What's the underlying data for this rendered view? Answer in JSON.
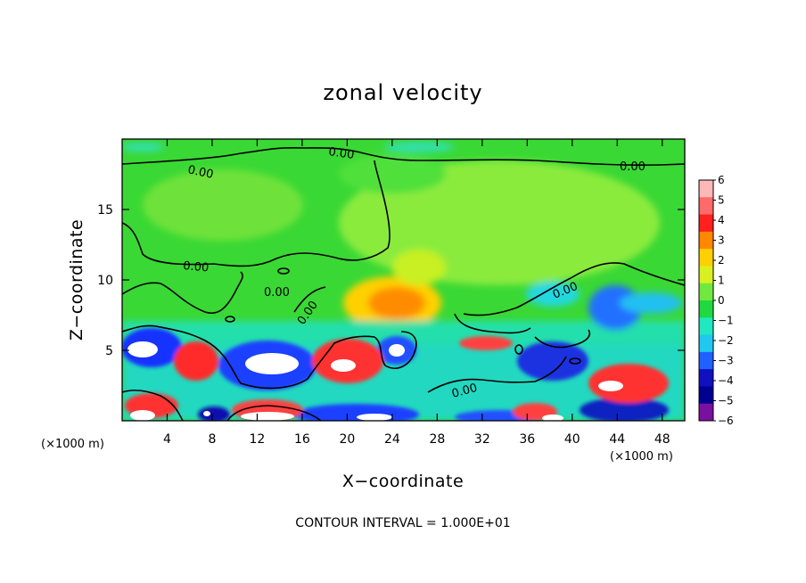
{
  "chart_data": {
    "type": "heatmap",
    "title": "zonal velocity",
    "xlabel": "X−coordinate",
    "ylabel": "Z−coordinate",
    "x_unit_left": "(×1000 m)",
    "x_unit_right": "(×1000 m)",
    "xlim": [
      0,
      50
    ],
    "ylim": [
      0,
      20
    ],
    "x_ticks": [
      4,
      8,
      12,
      16,
      20,
      24,
      28,
      32,
      36,
      40,
      44,
      48
    ],
    "y_ticks": [
      5,
      10,
      15
    ],
    "colorbar": {
      "ticks": [
        "6",
        "5",
        "4",
        "3",
        "2",
        "1",
        "0",
        "−1",
        "−2",
        "−3",
        "−4",
        "−5",
        "−6"
      ],
      "range": [
        -6,
        6
      ],
      "colors": [
        "#ffb8b8",
        "#ff6a6a",
        "#ff2020",
        "#ff8800",
        "#ffd000",
        "#d8f020",
        "#70e840",
        "#20d840",
        "#20e8c0",
        "#20c8f0",
        "#2060ff",
        "#1010c0",
        "#000090",
        "#7a10a0"
      ]
    },
    "contour_labels": [
      "0.00",
      "0.00",
      "0.00",
      "0.00",
      "0.00",
      "0.00",
      "0.00",
      "0.00"
    ],
    "note": "CONTOUR INTERVAL = 1.000E+01",
    "grid": false,
    "legend_position": "right (colorbar)"
  }
}
